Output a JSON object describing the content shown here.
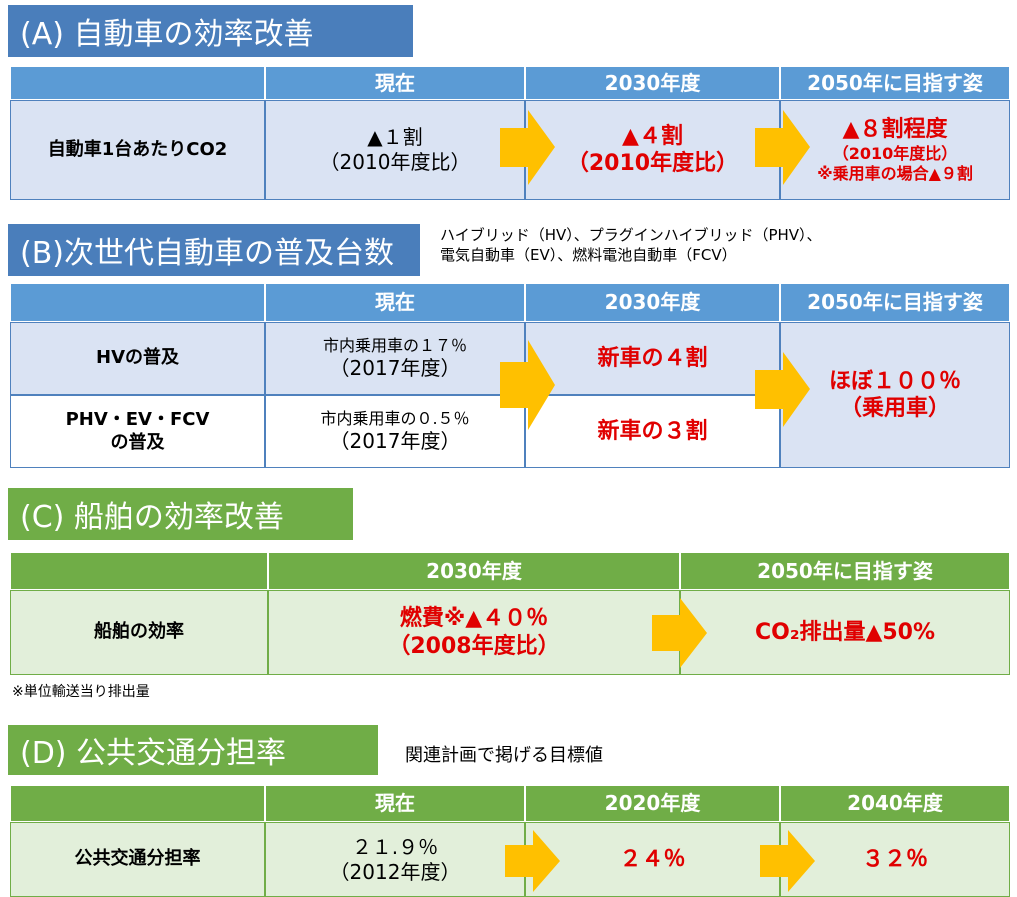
{
  "sections": [
    {
      "title": "(A) 自動車の効率改善",
      "table": {
        "header": [
          "現在",
          "2030年度",
          "2050年に目指す姿"
        ],
        "rows": [
          {
            "label": [
              "自動車1台あたりCO2"
            ],
            "cells": [
              [
                "▲１割",
                "（2010年度比）"
              ],
              [
                "▲４割",
                "（2010年度比）"
              ],
              [
                "▲８割程度",
                "（2010年度比）",
                "※乗用車の場合▲９割"
              ]
            ]
          }
        ]
      }
    },
    {
      "title": "(B)次世代自動車の普及台数",
      "note": [
        "ハイブリッド（HV）、プラグインハイブリッド（PHV）、",
        "電気自動車（EV）、燃料電池自動車（FCV）"
      ],
      "table": {
        "header": [
          "現在",
          "2030年度",
          "2050年に目指す姿"
        ],
        "rows": [
          {
            "label": [
              "HVの普及"
            ],
            "cells": [
              [
                "市内乗用車の１７％",
                "（2017年度）"
              ],
              [
                "新車の４割"
              ]
            ]
          },
          {
            "label": [
              "PHV・EV・FCV",
              "の普及"
            ],
            "cells": [
              [
                "市内乗用車の０.５％",
                "（2017年度）"
              ],
              [
                "新車の３割"
              ]
            ]
          }
        ],
        "merged": [
          "ほぼ１００％",
          "（乗用車）"
        ]
      }
    },
    {
      "title": "(C) 船舶の効率改善",
      "table": {
        "header": [
          "2030年度",
          "2050年に目指す姿"
        ],
        "rows": [
          {
            "label": [
              "船舶の効率"
            ],
            "cells": [
              [
                "燃費※▲４０％",
                "（2008年度比）"
              ],
              [
                "CO₂排出量▲50%"
              ]
            ]
          }
        ]
      },
      "footnote": "※単位輸送当り排出量"
    },
    {
      "title": "(D) 公共交通分担率",
      "note": [
        "関連計画で掲げる目標値"
      ],
      "table": {
        "header": [
          "現在",
          "2020年度",
          "2040年度"
        ],
        "rows": [
          {
            "label": [
              "公共交通分担率"
            ],
            "cells": [
              [
                "２１.９％",
                "（2012年度）"
              ],
              [
                "２４％"
              ],
              [
                "３２％"
              ]
            ]
          }
        ]
      }
    }
  ]
}
